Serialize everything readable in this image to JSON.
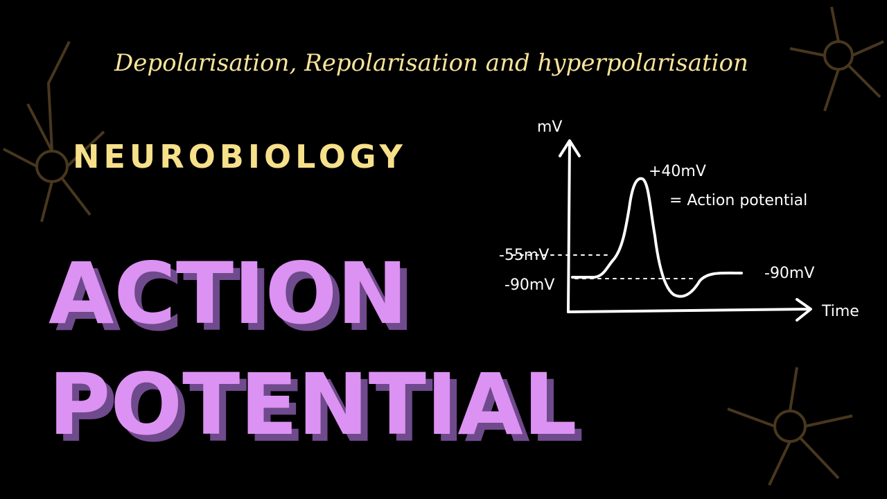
{
  "subtitle": "Depolarisation, Repolarisation and hyperpolarisation",
  "category": "NEUROBIOLOGY",
  "title": {
    "line1": "ACTION",
    "line2": "POTENTIAL"
  },
  "graph": {
    "y_axis_label": "mV",
    "x_axis_label": "Time",
    "peak_label": "+40mV",
    "peak_note": "= Action potential",
    "threshold_label": "-55mV",
    "resting_label_left": "-90mV",
    "resting_label_right": "-90mV"
  }
}
